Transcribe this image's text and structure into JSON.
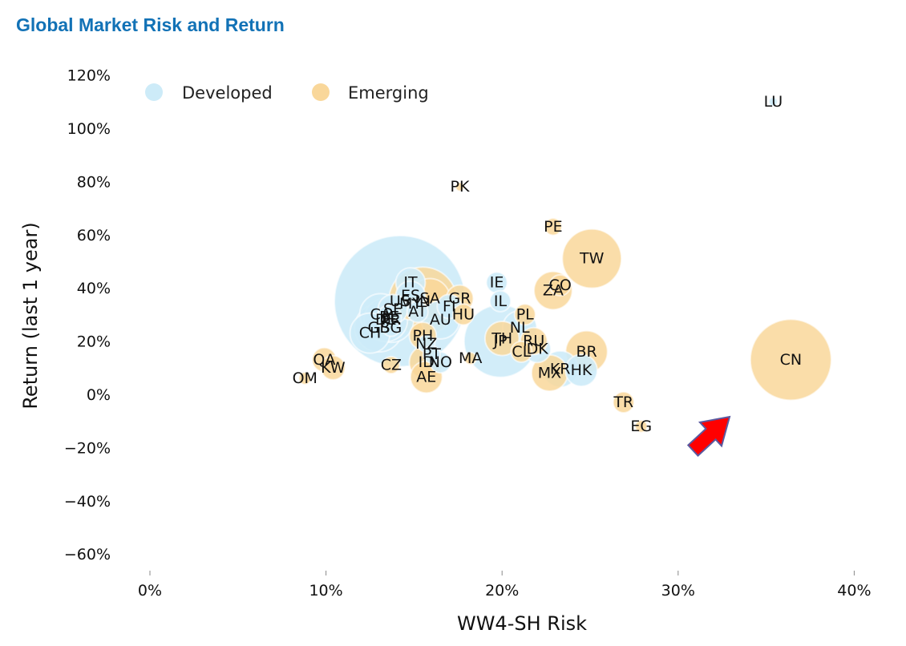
{
  "title": "Global Market Risk and Return",
  "colors": {
    "developed": "#CDEBF8",
    "emerging": "#F9D79A",
    "arrow": "#FF0000",
    "arrow_edge": "#5A5AA0"
  },
  "chart_data": {
    "type": "scatter",
    "title": "Global Market Risk and Return",
    "xlabel": "WW4-SH Risk",
    "ylabel": "Return (last 1 year)",
    "xlim": [
      -0.02,
      0.42
    ],
    "ylim": [
      -0.67,
      1.25
    ],
    "x_ticks": [
      "0%",
      "10%",
      "20%",
      "30%",
      "40%"
    ],
    "x_tick_values": [
      0,
      0.1,
      0.2,
      0.3,
      0.4
    ],
    "y_ticks": [
      "120%",
      "100%",
      "80%",
      "60%",
      "40%",
      "20%",
      "0%",
      "−20%",
      "−40%",
      "−60%"
    ],
    "y_tick_values": [
      1.2,
      1.0,
      0.8,
      0.6,
      0.4,
      0.2,
      0,
      -0.2,
      -0.4,
      -0.6
    ],
    "grid": false,
    "legend": {
      "position": "top-left",
      "entries": [
        {
          "name": "Developed",
          "color": "#CDEBF8"
        },
        {
          "name": "Emerging",
          "color": "#F9D79A"
        }
      ]
    },
    "annotation": "red arrow pointing to CN",
    "series": [
      {
        "name": "Developed",
        "points": [
          {
            "label": "US",
            "x": 0.142,
            "y": 0.35,
            "size": 118
          },
          {
            "label": "JP",
            "x": 0.199,
            "y": 0.2,
            "size": 36
          },
          {
            "label": "GB",
            "x": 0.13,
            "y": 0.25,
            "size": 16
          },
          {
            "label": "FR",
            "x": 0.137,
            "y": 0.28,
            "size": 14
          },
          {
            "label": "DE",
            "x": 0.134,
            "y": 0.28,
            "size": 13
          },
          {
            "label": "CA",
            "x": 0.131,
            "y": 0.3,
            "size": 12
          },
          {
            "label": "CH",
            "x": 0.125,
            "y": 0.23,
            "size": 11
          },
          {
            "label": "AU",
            "x": 0.165,
            "y": 0.28,
            "size": 10
          },
          {
            "label": "KR",
            "x": 0.233,
            "y": 0.095,
            "size": 9
          },
          {
            "label": "HK",
            "x": 0.245,
            "y": 0.09,
            "size": 7
          },
          {
            "label": "NL",
            "x": 0.21,
            "y": 0.25,
            "size": 8
          },
          {
            "label": "IT",
            "x": 0.148,
            "y": 0.42,
            "size": 6
          },
          {
            "label": "ES",
            "x": 0.148,
            "y": 0.37,
            "size": 6
          },
          {
            "label": "SE",
            "x": 0.138,
            "y": 0.32,
            "size": 6
          },
          {
            "label": "DK",
            "x": 0.22,
            "y": 0.17,
            "size": 5
          },
          {
            "label": "FI",
            "x": 0.17,
            "y": 0.33,
            "size": 4
          },
          {
            "label": "BE",
            "x": 0.136,
            "y": 0.29,
            "size": 4
          },
          {
            "label": "NO",
            "x": 0.165,
            "y": 0.12,
            "size": 3
          },
          {
            "label": "IE",
            "x": 0.197,
            "y": 0.42,
            "size": 3
          },
          {
            "label": "IL",
            "x": 0.199,
            "y": 0.35,
            "size": 3
          },
          {
            "label": "AT",
            "x": 0.152,
            "y": 0.31,
            "size": 3
          },
          {
            "label": "NZ",
            "x": 0.157,
            "y": 0.19,
            "size": 2
          },
          {
            "label": "PT",
            "x": 0.16,
            "y": 0.15,
            "size": 2
          },
          {
            "label": "SG",
            "x": 0.137,
            "y": 0.25,
            "size": 2
          },
          {
            "label": "LU",
            "x": 0.354,
            "y": 1.1,
            "size": 0.5
          }
        ]
      },
      {
        "name": "Emerging",
        "points": [
          {
            "label": "CN",
            "x": 0.364,
            "y": 0.13,
            "size": 45
          },
          {
            "label": "IN",
            "x": 0.155,
            "y": 0.35,
            "size": 32
          },
          {
            "label": "TW",
            "x": 0.251,
            "y": 0.51,
            "size": 24
          },
          {
            "label": "BR",
            "x": 0.248,
            "y": 0.16,
            "size": 12
          },
          {
            "label": "SA",
            "x": 0.159,
            "y": 0.36,
            "size": 11
          },
          {
            "label": "ZA",
            "x": 0.229,
            "y": 0.39,
            "size": 10
          },
          {
            "label": "MX",
            "x": 0.227,
            "y": 0.08,
            "size": 9
          },
          {
            "label": "TH",
            "x": 0.2,
            "y": 0.21,
            "size": 8
          },
          {
            "label": "ID",
            "x": 0.157,
            "y": 0.12,
            "size": 8
          },
          {
            "label": "MY",
            "x": 0.148,
            "y": 0.34,
            "size": 7
          },
          {
            "label": "AE",
            "x": 0.157,
            "y": 0.065,
            "size": 7
          },
          {
            "label": "PH",
            "x": 0.155,
            "y": 0.22,
            "size": 5
          },
          {
            "label": "GR",
            "x": 0.176,
            "y": 0.36,
            "size": 5
          },
          {
            "label": "RU",
            "x": 0.218,
            "y": 0.2,
            "size": 5
          },
          {
            "label": "QA",
            "x": 0.099,
            "y": 0.13,
            "size": 4
          },
          {
            "label": "KW",
            "x": 0.104,
            "y": 0.1,
            "size": 4
          },
          {
            "label": "CL",
            "x": 0.211,
            "y": 0.16,
            "size": 3
          },
          {
            "label": "TR",
            "x": 0.269,
            "y": -0.03,
            "size": 3
          },
          {
            "label": "CO",
            "x": 0.233,
            "y": 0.41,
            "size": 3
          },
          {
            "label": "PL",
            "x": 0.213,
            "y": 0.3,
            "size": 3
          },
          {
            "label": "HU",
            "x": 0.178,
            "y": 0.3,
            "size": 3
          },
          {
            "label": "CZ",
            "x": 0.137,
            "y": 0.11,
            "size": 2
          },
          {
            "label": "PE",
            "x": 0.229,
            "y": 0.63,
            "size": 2
          },
          {
            "label": "EG",
            "x": 0.279,
            "y": -0.12,
            "size": 1
          },
          {
            "label": "OM",
            "x": 0.088,
            "y": 0.06,
            "size": 1
          },
          {
            "label": "MA",
            "x": 0.182,
            "y": 0.135,
            "size": 1
          },
          {
            "label": "PK",
            "x": 0.176,
            "y": 0.78,
            "size": 0.5
          }
        ]
      }
    ]
  }
}
